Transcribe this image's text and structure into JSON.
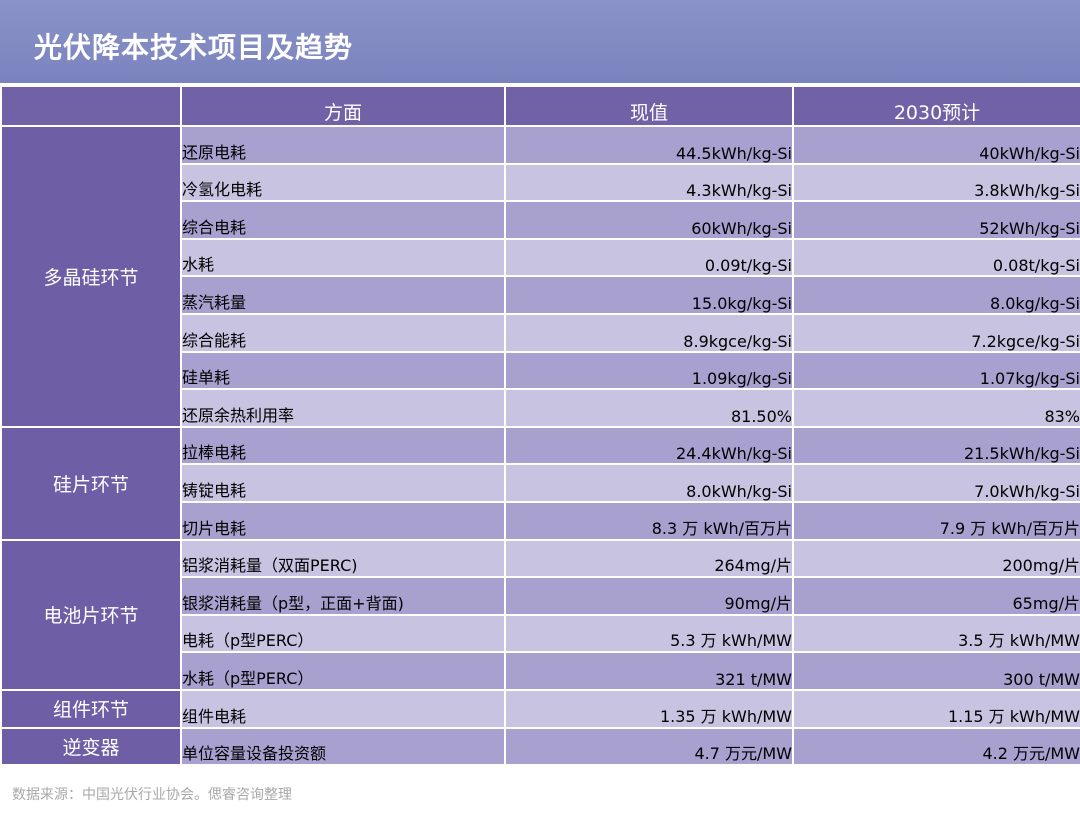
{
  "title": "光伏降本技术项目及趋势",
  "header": {
    "blank": "",
    "aspect": "方面",
    "current": "现值",
    "forecast": "2030预计"
  },
  "groups": [
    {
      "name": "多晶硅环节",
      "rows": [
        {
          "item": "还原电耗",
          "current": "44.5kWh/kg-Si",
          "forecast": "40kWh/kg-Si"
        },
        {
          "item": "冷氢化电耗",
          "current": "4.3kWh/kg-Si",
          "forecast": "3.8kWh/kg-Si"
        },
        {
          "item": "综合电耗",
          "current": "60kWh/kg-Si",
          "forecast": "52kWh/kg-Si"
        },
        {
          "item": "水耗",
          "current": "0.09t/kg-Si",
          "forecast": "0.08t/kg-Si"
        },
        {
          "item": "蒸汽耗量",
          "current": "15.0kg/kg-Si",
          "forecast": "8.0kg/kg-Si"
        },
        {
          "item": "综合能耗",
          "current": "8.9kgce/kg-Si",
          "forecast": "7.2kgce/kg-Si"
        },
        {
          "item": "硅单耗",
          "current": "1.09kg/kg-Si",
          "forecast": "1.07kg/kg-Si"
        },
        {
          "item": "还原余热利用率",
          "current": "81.50%",
          "forecast": "83%"
        }
      ]
    },
    {
      "name": "硅片环节",
      "rows": [
        {
          "item": "拉棒电耗",
          "current": "24.4kWh/kg-Si",
          "forecast": "21.5kWh/kg-Si"
        },
        {
          "item": "铸锭电耗",
          "current": "8.0kWh/kg-Si",
          "forecast": "7.0kWh/kg-Si"
        },
        {
          "item": "切片电耗",
          "current": "8.3 万 kWh/百万片",
          "forecast": "7.9 万 kWh/百万片"
        }
      ]
    },
    {
      "name": "电池片环节",
      "rows": [
        {
          "item": "铝浆消耗量（双面PERC)",
          "current": "264mg/片",
          "forecast": "200mg/片"
        },
        {
          "item": "银浆消耗量（p型，正面+背面)",
          "current": "90mg/片",
          "forecast": "65mg/片"
        },
        {
          "item": "电耗（p型PERC）",
          "current": "5.3 万 kWh/MW",
          "forecast": "3.5 万 kWh/MW"
        },
        {
          "item": "水耗（p型PERC）",
          "current": "321 t/MW",
          "forecast": "300 t/MW"
        }
      ]
    },
    {
      "name": "组件环节",
      "rows": [
        {
          "item": "组件电耗",
          "current": "1.35 万 kWh/MW",
          "forecast": "1.15 万 kWh/MW"
        }
      ]
    },
    {
      "name": "逆变器",
      "rows": [
        {
          "item": "单位容量设备投资额",
          "current": "4.7 万元/MW",
          "forecast": "4.2 万元/MW"
        }
      ]
    }
  ],
  "source": "数据来源：中国光伏行业协会。偲睿咨询整理"
}
